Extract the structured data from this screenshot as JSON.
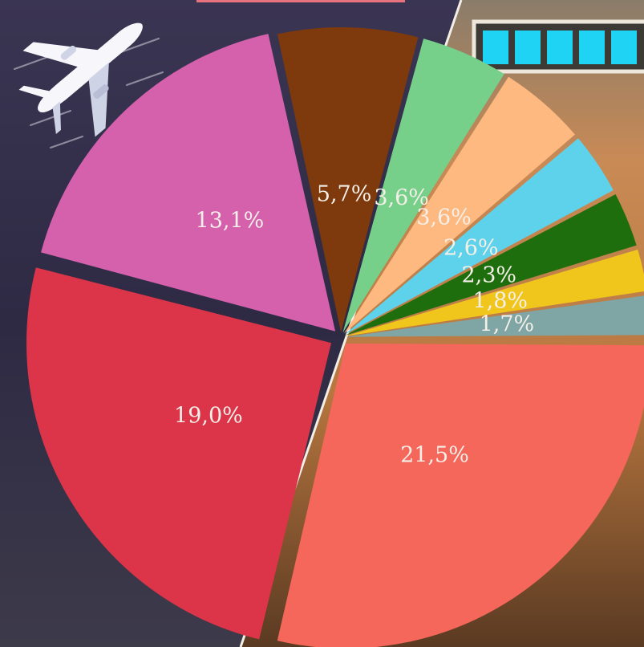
{
  "chart_data": {
    "type": "pie",
    "title": "",
    "slices": [
      {
        "value": 21.5,
        "label": "21,5%",
        "color": "#f4675a"
      },
      {
        "value": 19.0,
        "label": "19,0%",
        "color": "#dc3449"
      },
      {
        "value": 13.1,
        "label": "13,1%",
        "color": "#d561ad"
      },
      {
        "value": 5.7,
        "label": "5,7%",
        "color": "#7e3a0c"
      },
      {
        "value": 3.6,
        "label": "3,6%",
        "color": "#76d08a"
      },
      {
        "value": 3.6,
        "label": "3,6%",
        "color": "#fdb97f"
      },
      {
        "value": 2.6,
        "label": "2,6%",
        "color": "#5ed2ea"
      },
      {
        "value": 2.3,
        "label": "2,3%",
        "color": "#1f6e0d"
      },
      {
        "value": 1.8,
        "label": "1,8%",
        "color": "#f1c61c"
      },
      {
        "value": 1.7,
        "label": "1,7%",
        "color": "#7fa6a4"
      }
    ]
  },
  "decor": {
    "icons": [
      "airplane-icon",
      "battery-icon"
    ],
    "battery_level": 1.0
  }
}
